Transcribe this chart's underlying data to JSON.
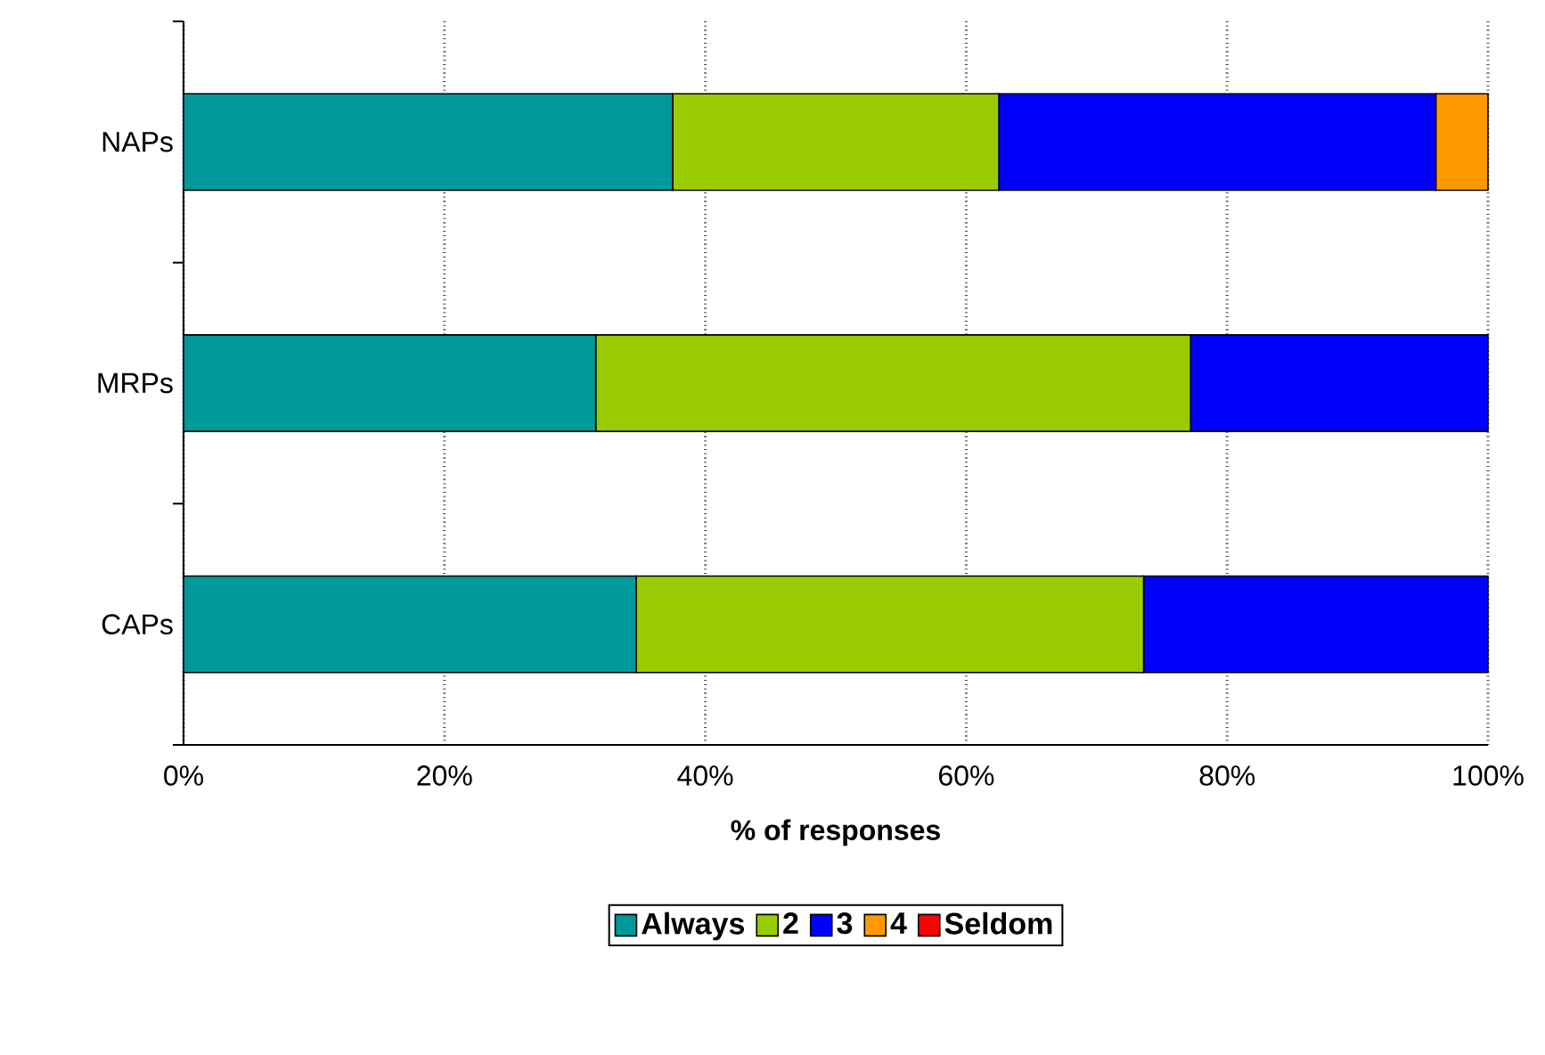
{
  "chart_data": {
    "type": "bar",
    "orientation": "horizontal",
    "stacked": true,
    "categories": [
      "NAPs",
      "MRPs",
      "CAPs"
    ],
    "series": [
      {
        "name": "Always",
        "color": "#009999",
        "values": [
          37.5,
          31.6,
          34.7
        ]
      },
      {
        "name": "2",
        "color": "#99cc00",
        "values": [
          25.0,
          45.6,
          38.9
        ]
      },
      {
        "name": "3",
        "color": "#0000ff",
        "values": [
          33.5,
          22.8,
          26.4
        ]
      },
      {
        "name": "4",
        "color": "#ff9900",
        "values": [
          4.0,
          0,
          0
        ]
      },
      {
        "name": "Seldom",
        "color": "#ff0000",
        "values": [
          0,
          0,
          0
        ]
      }
    ],
    "xlim": [
      0,
      100
    ],
    "xticks": [
      {
        "value": 0,
        "label": "0%"
      },
      {
        "value": 20,
        "label": "20%"
      },
      {
        "value": 40,
        "label": "40%"
      },
      {
        "value": 60,
        "label": "60%"
      },
      {
        "value": 80,
        "label": "80%"
      },
      {
        "value": 100,
        "label": "100%"
      }
    ],
    "xlabel": "% of responses",
    "grid": "x",
    "legend": "bottom"
  }
}
